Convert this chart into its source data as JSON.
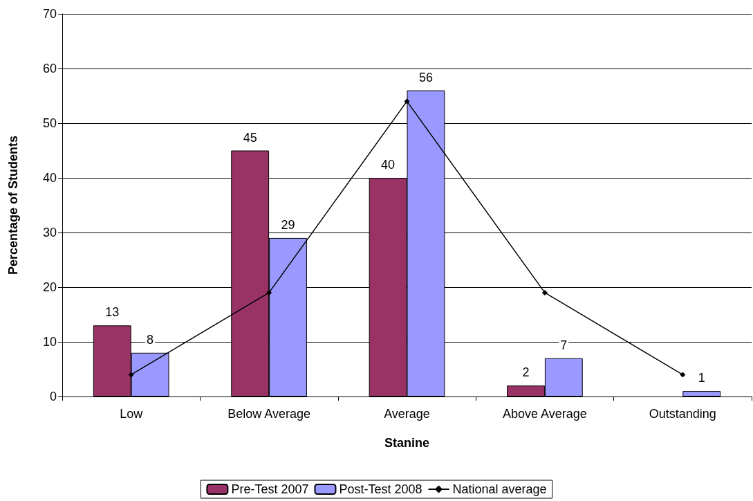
{
  "chart_data": {
    "type": "bar",
    "xlabel": "Stanine",
    "ylabel": "Percentage of Students",
    "categories": [
      "Low",
      "Below Average",
      "Average",
      "Above Average",
      "Outstanding"
    ],
    "series": [
      {
        "name": "Pre-Test 2007",
        "color": "#993366",
        "values": [
          13,
          45,
          40,
          2,
          null
        ],
        "value_labels": [
          "13",
          "45",
          "40",
          "2",
          null
        ]
      },
      {
        "name": "Post-Test 2008",
        "color": "#9999ff",
        "values": [
          8,
          29,
          56,
          7,
          1
        ],
        "value_labels": [
          "8",
          "29",
          "56",
          "7",
          "1"
        ]
      },
      {
        "name": "National average",
        "type": "line",
        "color": "#000000",
        "values": [
          4,
          19,
          54,
          19,
          4
        ],
        "marker": "diamond",
        "line_style": "solid"
      }
    ],
    "ylim": [
      0,
      70
    ],
    "yticks": [
      0,
      10,
      20,
      30,
      40,
      50,
      60,
      70
    ],
    "grid": "y",
    "legend": "bottom"
  }
}
